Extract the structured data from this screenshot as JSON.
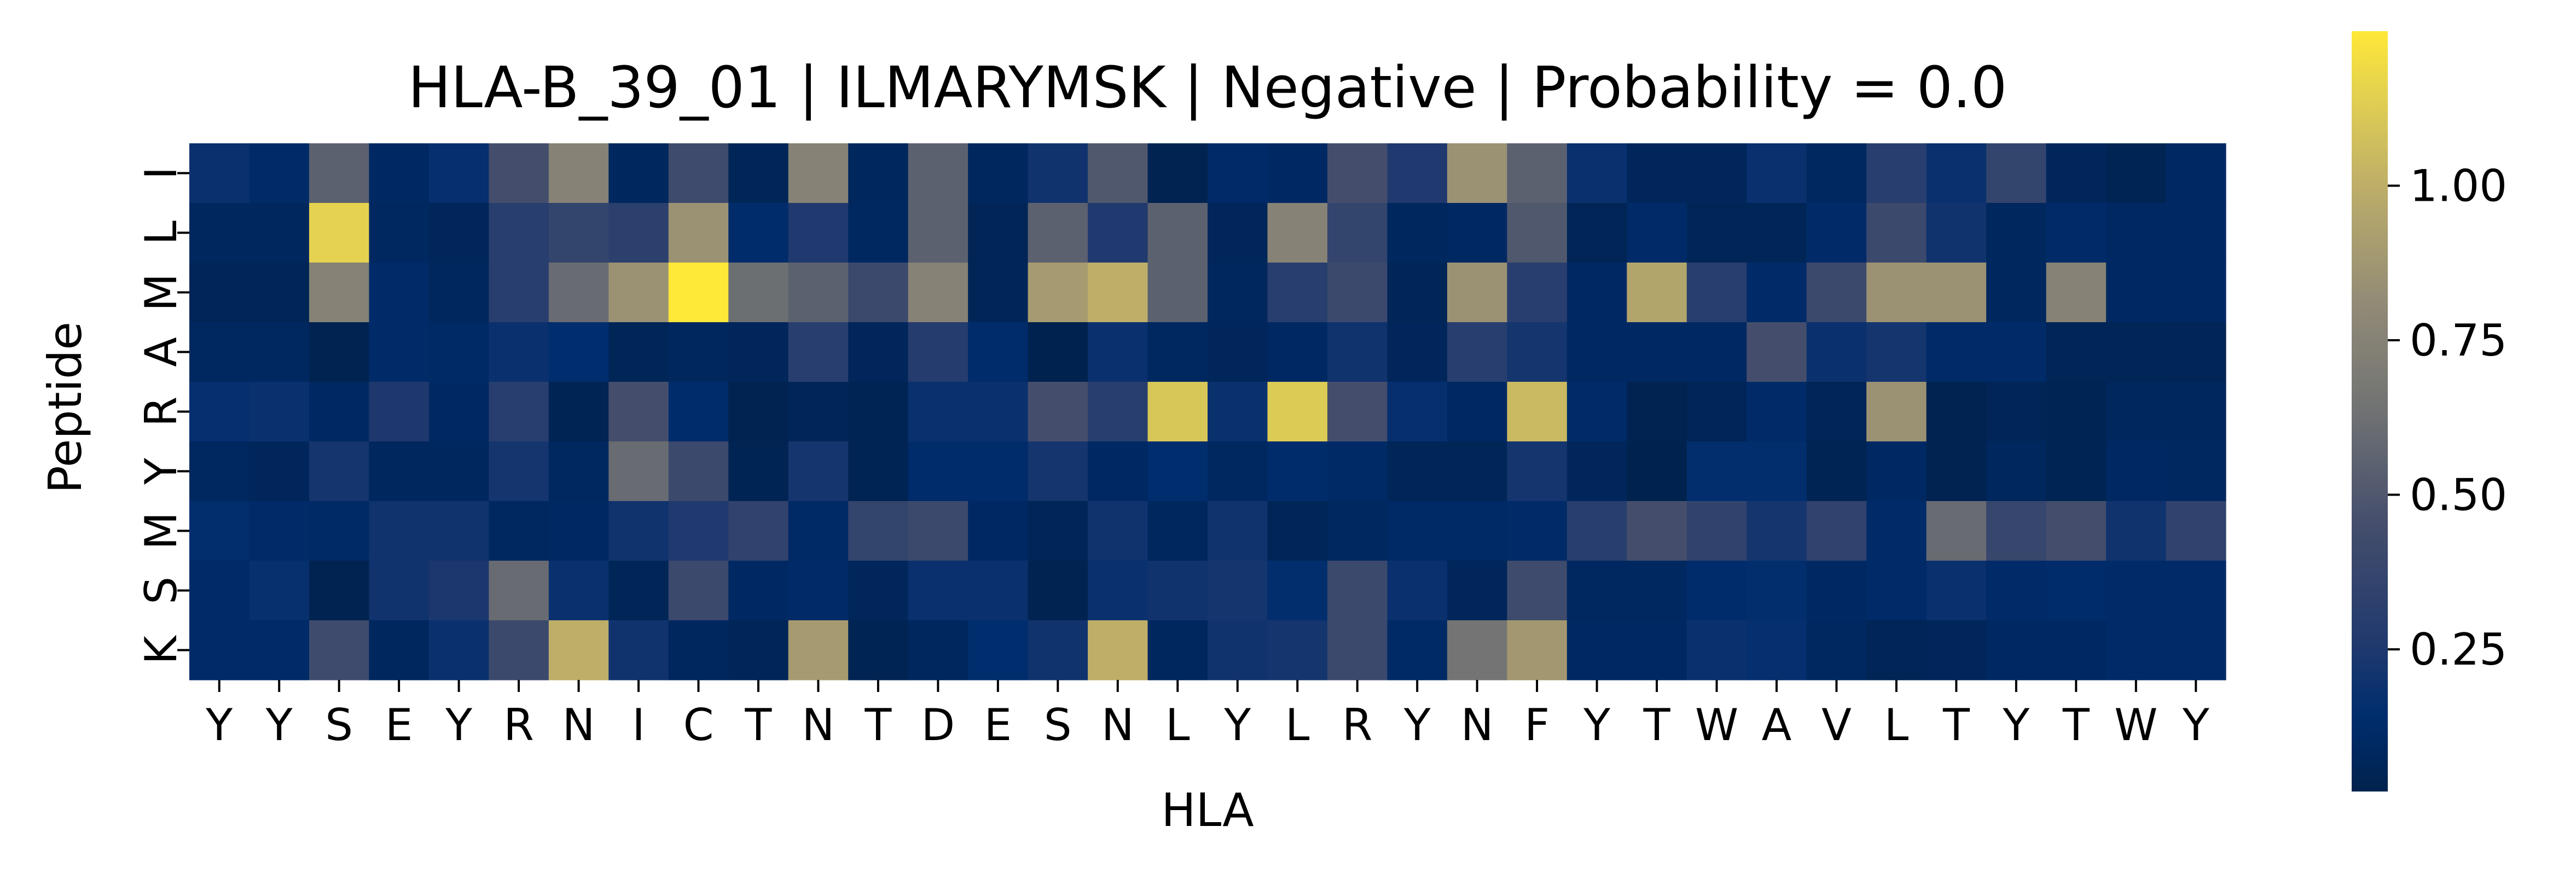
{
  "chart_data": {
    "type": "heatmap",
    "title": "HLA-B_39_01 | ILMARYMSK | Negative | Probability = 0.0",
    "xlabel": "HLA",
    "ylabel": "Peptide",
    "x_categories": [
      "Y",
      "Y",
      "S",
      "E",
      "Y",
      "R",
      "N",
      "I",
      "C",
      "T",
      "N",
      "T",
      "D",
      "E",
      "S",
      "N",
      "L",
      "Y",
      "L",
      "R",
      "Y",
      "N",
      "F",
      "Y",
      "T",
      "W",
      "A",
      "V",
      "L",
      "T",
      "Y",
      "T",
      "W",
      "Y"
    ],
    "y_categories": [
      "I",
      "L",
      "M",
      "A",
      "R",
      "Y",
      "M",
      "S",
      "K"
    ],
    "values": [
      [
        0.18,
        0.12,
        0.55,
        0.1,
        0.16,
        0.45,
        0.75,
        0.08,
        0.42,
        0.06,
        0.75,
        0.08,
        0.55,
        0.08,
        0.2,
        0.5,
        0.03,
        0.12,
        0.1,
        0.45,
        0.26,
        0.85,
        0.55,
        0.18,
        0.07,
        0.07,
        0.18,
        0.09,
        0.3,
        0.18,
        0.36,
        0.07,
        0.04,
        0.1
      ],
      [
        0.08,
        0.08,
        1.15,
        0.09,
        0.07,
        0.3,
        0.36,
        0.32,
        0.85,
        0.13,
        0.26,
        0.09,
        0.55,
        0.05,
        0.55,
        0.26,
        0.55,
        0.07,
        0.75,
        0.36,
        0.08,
        0.1,
        0.5,
        0.05,
        0.12,
        0.06,
        0.06,
        0.12,
        0.4,
        0.2,
        0.08,
        0.12,
        0.1,
        0.1
      ],
      [
        0.05,
        0.05,
        0.75,
        0.12,
        0.08,
        0.3,
        0.6,
        0.85,
        1.25,
        0.62,
        0.55,
        0.4,
        0.75,
        0.06,
        0.9,
        1.0,
        0.55,
        0.08,
        0.3,
        0.4,
        0.05,
        0.85,
        0.3,
        0.1,
        0.95,
        0.3,
        0.12,
        0.4,
        0.85,
        0.85,
        0.08,
        0.75,
        0.1,
        0.1
      ],
      [
        0.09,
        0.09,
        0.03,
        0.12,
        0.11,
        0.18,
        0.14,
        0.06,
        0.08,
        0.07,
        0.3,
        0.07,
        0.28,
        0.13,
        0.02,
        0.18,
        0.09,
        0.07,
        0.1,
        0.2,
        0.07,
        0.3,
        0.22,
        0.1,
        0.1,
        0.1,
        0.45,
        0.18,
        0.22,
        0.12,
        0.12,
        0.05,
        0.06,
        0.05
      ],
      [
        0.16,
        0.18,
        0.1,
        0.25,
        0.1,
        0.3,
        0.04,
        0.45,
        0.13,
        0.03,
        0.06,
        0.04,
        0.18,
        0.18,
        0.45,
        0.3,
        1.1,
        0.18,
        1.12,
        0.45,
        0.16,
        0.1,
        1.05,
        0.12,
        0.03,
        0.05,
        0.12,
        0.05,
        0.85,
        0.03,
        0.05,
        0.04,
        0.08,
        0.08
      ],
      [
        0.09,
        0.07,
        0.22,
        0.08,
        0.08,
        0.22,
        0.09,
        0.6,
        0.4,
        0.04,
        0.22,
        0.04,
        0.13,
        0.13,
        0.22,
        0.1,
        0.14,
        0.09,
        0.13,
        0.11,
        0.06,
        0.06,
        0.22,
        0.07,
        0.02,
        0.15,
        0.15,
        0.04,
        0.1,
        0.03,
        0.08,
        0.04,
        0.1,
        0.09
      ],
      [
        0.15,
        0.12,
        0.11,
        0.2,
        0.2,
        0.09,
        0.1,
        0.2,
        0.26,
        0.34,
        0.11,
        0.36,
        0.4,
        0.1,
        0.06,
        0.2,
        0.08,
        0.2,
        0.06,
        0.09,
        0.11,
        0.11,
        0.12,
        0.3,
        0.45,
        0.35,
        0.22,
        0.34,
        0.12,
        0.6,
        0.38,
        0.45,
        0.2,
        0.34
      ],
      [
        0.12,
        0.17,
        0.03,
        0.2,
        0.24,
        0.6,
        0.18,
        0.06,
        0.4,
        0.1,
        0.12,
        0.07,
        0.18,
        0.18,
        0.03,
        0.18,
        0.2,
        0.22,
        0.15,
        0.4,
        0.18,
        0.07,
        0.42,
        0.09,
        0.09,
        0.13,
        0.15,
        0.1,
        0.12,
        0.18,
        0.12,
        0.13,
        0.12,
        0.12
      ],
      [
        0.12,
        0.12,
        0.42,
        0.08,
        0.18,
        0.4,
        1.0,
        0.2,
        0.08,
        0.06,
        0.9,
        0.04,
        0.08,
        0.14,
        0.2,
        1.0,
        0.08,
        0.2,
        0.22,
        0.4,
        0.11,
        0.65,
        0.88,
        0.1,
        0.1,
        0.18,
        0.16,
        0.09,
        0.05,
        0.07,
        0.1,
        0.1,
        0.12,
        0.12
      ]
    ],
    "colorscale": "cividis",
    "vmin": 0.02,
    "vmax": 1.25,
    "colorbar_ticks": [
      0.25,
      0.5,
      0.75,
      1.0
    ],
    "colorbar_tick_labels": [
      "0.25",
      "0.50",
      "0.75",
      "1.00"
    ]
  }
}
